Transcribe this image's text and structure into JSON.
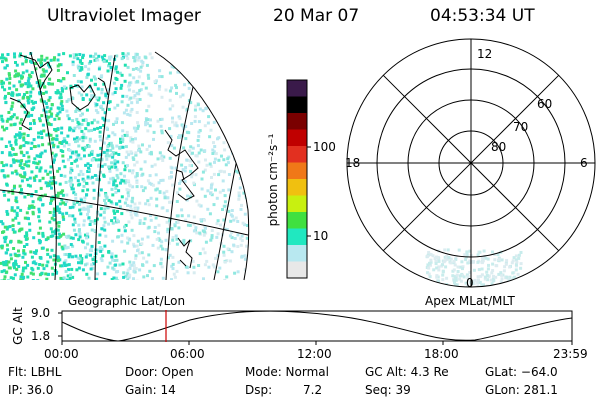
{
  "header": {
    "instrument": "Ultraviolet Imager",
    "date": "20 Mar 07",
    "time": "04:53:34 UT"
  },
  "colorbar": {
    "unit_label": "photon cm⁻²s⁻¹",
    "ticks": [
      "100",
      "10"
    ],
    "colors": [
      "#3a1a4a",
      "#000000",
      "#7a0000",
      "#c00000",
      "#e23020",
      "#f07818",
      "#f0c010",
      "#c8f010",
      "#40e040",
      "#20e8c0",
      "#b8e8f0",
      "#e8e8e8"
    ]
  },
  "polar_plot": {
    "mlt_labels": [
      "12",
      "18",
      "6",
      "0"
    ],
    "lat_labels": [
      "60",
      "70",
      "80"
    ]
  },
  "projection_labels": {
    "geographic": "Geographic Lat/Lon",
    "apex": "Apex MLat/MLT"
  },
  "altitude_plot": {
    "axis_label": "GC Alt",
    "y_ticks": [
      "9.0",
      "1.8"
    ],
    "x_ticks": [
      "00:00",
      "06:00",
      "12:00",
      "18:00",
      "23:59"
    ],
    "current_time_marker": "04:53",
    "line_color": "#cc0000"
  },
  "info": {
    "flt": "Flt: LBHL",
    "ip": "IP: 36.0",
    "door": "Door: Open",
    "gain": "Gain: 14",
    "mode": "Mode: Normal",
    "dsp_label": "Dsp:",
    "dsp_value": "7.2",
    "gc_alt": "GC Alt: 4.3 Re",
    "seq": "Seq: 39",
    "glat": "GLat: −64.0",
    "glon": "GLon: 281.1"
  }
}
